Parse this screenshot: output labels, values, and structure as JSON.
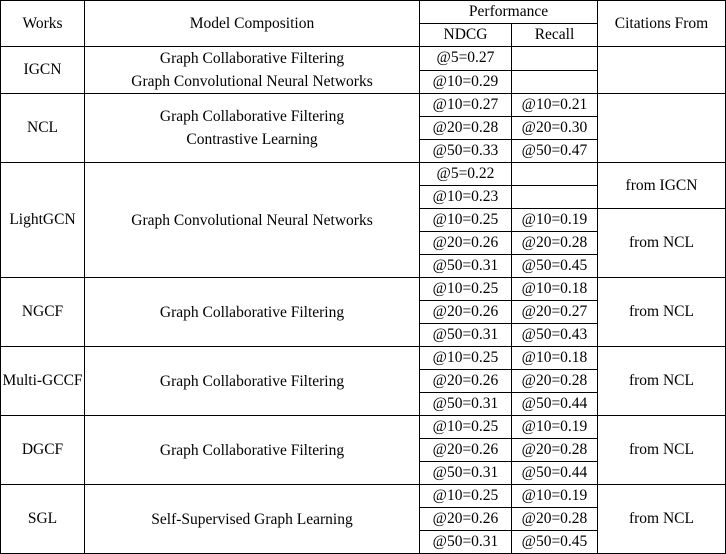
{
  "headers": {
    "works": "Works",
    "model": "Model Composition",
    "performance": "Performance",
    "ndcg": "NDCG",
    "recall": "Recall",
    "citations": "Citations From"
  },
  "rows": [
    {
      "work": "IGCN",
      "composition": [
        "Graph Collaborative Filtering",
        "Graph Convolutional Neural Networks"
      ],
      "metrics": [
        {
          "ndcg": "@5=0.27",
          "recall": ""
        },
        {
          "ndcg": "@10=0.29",
          "recall": ""
        }
      ],
      "citations": [
        ""
      ]
    },
    {
      "work": "NCL",
      "composition": [
        "Graph Collaborative Filtering",
        "Contrastive Learning"
      ],
      "metrics": [
        {
          "ndcg": "@10=0.27",
          "recall": "@10=0.21"
        },
        {
          "ndcg": "@20=0.28",
          "recall": "@20=0.30"
        },
        {
          "ndcg": "@50=0.33",
          "recall": "@50=0.47"
        }
      ],
      "citations": [
        ""
      ]
    },
    {
      "work": "LightGCN",
      "composition": [
        "Graph Convolutional Neural Networks"
      ],
      "metrics": [
        {
          "ndcg": "@5=0.22",
          "recall": ""
        },
        {
          "ndcg": "@10=0.23",
          "recall": ""
        },
        {
          "ndcg": "@10=0.25",
          "recall": "@10=0.19"
        },
        {
          "ndcg": "@20=0.26",
          "recall": "@20=0.28"
        },
        {
          "ndcg": "@50=0.31",
          "recall": "@50=0.45"
        }
      ],
      "citations": [
        "from IGCN",
        "from NCL"
      ]
    },
    {
      "work": "NGCF",
      "composition": [
        "Graph Collaborative Filtering"
      ],
      "metrics": [
        {
          "ndcg": "@10=0.25",
          "recall": "@10=0.18"
        },
        {
          "ndcg": "@20=0.26",
          "recall": "@20=0.27"
        },
        {
          "ndcg": "@50=0.31",
          "recall": "@50=0.43"
        }
      ],
      "citations": [
        "from NCL"
      ]
    },
    {
      "work": "Multi-GCCF",
      "composition": [
        "Graph Collaborative Filtering"
      ],
      "metrics": [
        {
          "ndcg": "@10=0.25",
          "recall": "@10=0.18"
        },
        {
          "ndcg": "@20=0.26",
          "recall": "@20=0.28"
        },
        {
          "ndcg": "@50=0.31",
          "recall": "@50=0.44"
        }
      ],
      "citations": [
        "from NCL"
      ]
    },
    {
      "work": "DGCF",
      "composition": [
        "Graph Collaborative Filtering"
      ],
      "metrics": [
        {
          "ndcg": "@10=0.25",
          "recall": "@10=0.19"
        },
        {
          "ndcg": "@20=0.26",
          "recall": "@20=0.28"
        },
        {
          "ndcg": "@50=0.31",
          "recall": "@50=0.44"
        }
      ],
      "citations": [
        "from NCL"
      ]
    },
    {
      "work": "SGL",
      "composition": [
        "Self-Supervised Graph Learning"
      ],
      "metrics": [
        {
          "ndcg": "@10=0.25",
          "recall": "@10=0.19"
        },
        {
          "ndcg": "@20=0.26",
          "recall": "@20=0.28"
        },
        {
          "ndcg": "@50=0.31",
          "recall": "@50=0.45"
        }
      ],
      "citations": [
        "from NCL"
      ]
    }
  ]
}
